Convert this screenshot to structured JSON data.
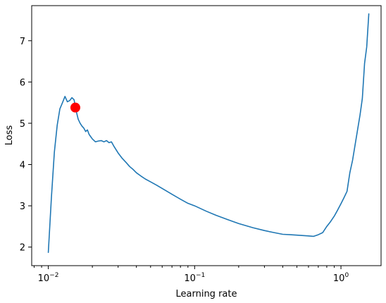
{
  "chart_data": {
    "type": "line",
    "title": "",
    "xlabel": "Learning rate",
    "ylabel": "Loss",
    "xscale": "log",
    "xlim": [
      0.0077,
      1.88
    ],
    "ylim": [
      1.55,
      7.85
    ],
    "grid": false,
    "x_ticks": [
      {
        "value": 0.01,
        "base": "10",
        "exp": "−2"
      },
      {
        "value": 0.1,
        "base": "10",
        "exp": "−1"
      },
      {
        "value": 1,
        "base": "10",
        "exp": "0"
      }
    ],
    "y_ticks": [
      {
        "value": 2,
        "label": "2"
      },
      {
        "value": 3,
        "label": "3"
      },
      {
        "value": 4,
        "label": "4"
      },
      {
        "value": 5,
        "label": "5"
      },
      {
        "value": 6,
        "label": "6"
      },
      {
        "value": 7,
        "label": "7"
      }
    ],
    "series": [
      {
        "color": "#1f77b4",
        "x": [
          0.01,
          0.0105,
          0.011,
          0.0115,
          0.012,
          0.0125,
          0.013,
          0.0135,
          0.014,
          0.0145,
          0.015,
          0.0155,
          0.016,
          0.0165,
          0.017,
          0.0175,
          0.018,
          0.0185,
          0.019,
          0.02,
          0.021,
          0.022,
          0.023,
          0.024,
          0.025,
          0.026,
          0.027,
          0.028,
          0.03,
          0.032,
          0.034,
          0.036,
          0.038,
          0.04,
          0.043,
          0.046,
          0.05,
          0.055,
          0.06,
          0.07,
          0.08,
          0.09,
          0.1,
          0.12,
          0.14,
          0.17,
          0.2,
          0.25,
          0.3,
          0.35,
          0.4,
          0.45,
          0.5,
          0.6,
          0.65,
          0.7,
          0.75,
          0.8,
          0.85,
          0.9,
          0.95,
          1.0,
          1.05,
          1.1,
          1.15,
          1.2,
          1.3,
          1.35,
          1.4,
          1.45,
          1.5,
          1.55
        ],
        "y": [
          1.87,
          3.2,
          4.3,
          4.95,
          5.35,
          5.5,
          5.65,
          5.52,
          5.55,
          5.62,
          5.57,
          5.3,
          5.1,
          5.0,
          4.93,
          4.88,
          4.8,
          4.84,
          4.73,
          4.62,
          4.55,
          4.57,
          4.58,
          4.55,
          4.58,
          4.53,
          4.55,
          4.45,
          4.28,
          4.15,
          4.05,
          3.95,
          3.88,
          3.8,
          3.72,
          3.65,
          3.58,
          3.5,
          3.42,
          3.28,
          3.16,
          3.06,
          3.0,
          2.87,
          2.77,
          2.66,
          2.57,
          2.47,
          2.4,
          2.35,
          2.31,
          2.3,
          2.29,
          2.27,
          2.26,
          2.3,
          2.35,
          2.5,
          2.62,
          2.75,
          2.9,
          3.05,
          3.2,
          3.35,
          3.8,
          4.1,
          4.85,
          5.2,
          5.6,
          6.45,
          6.85,
          7.65
        ]
      }
    ],
    "highlight_point": {
      "x": 0.0153,
      "y": 5.38,
      "color": "#ff0000"
    }
  }
}
